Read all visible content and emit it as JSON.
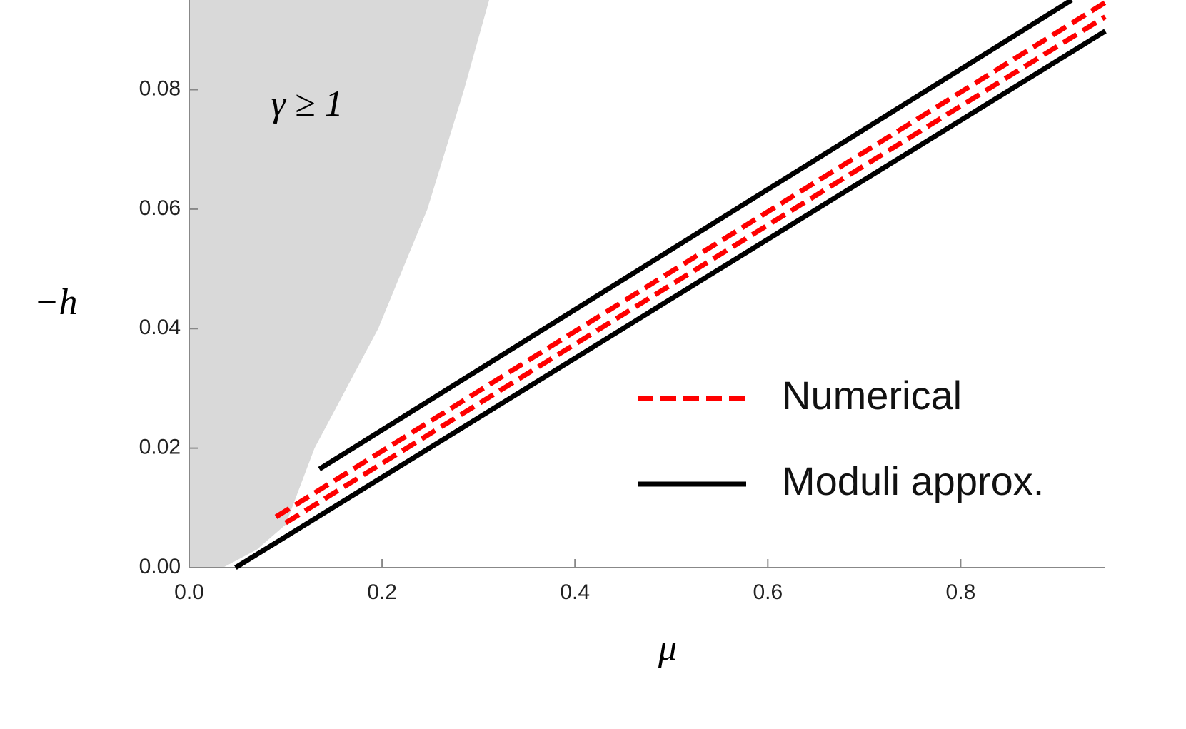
{
  "chart_data": {
    "type": "line",
    "xlabel": "μ",
    "ylabel": "−h",
    "annotation": "γ ≥ 1",
    "xlim": [
      0,
      0.95
    ],
    "ylim": [
      0,
      0.095
    ],
    "xticks": [
      {
        "value": 0,
        "label": "0.0"
      },
      0.2,
      0.4,
      0.6,
      0.8
    ],
    "yticks": [
      {
        "value": 0,
        "label": "0.00"
      },
      {
        "value": 0.02,
        "label": "0.02"
      },
      {
        "value": 0.04,
        "label": "0.04"
      },
      {
        "value": 0.06,
        "label": "0.06"
      },
      {
        "value": 0.08,
        "label": "0.08"
      }
    ],
    "legend": "lower-right",
    "region": {
      "color": "#d9d9d9",
      "x": [
        0.035,
        0.07,
        0.1,
        0.13,
        0.196,
        0.247,
        0.285,
        0.311
      ],
      "values": [
        0,
        0.003,
        0.0072,
        0.02,
        0.04,
        0.06,
        0.08,
        0.095
      ]
    },
    "series": [
      {
        "name": "Numerical",
        "color": "#ff0000",
        "dashed": true,
        "x": [
          0.09,
          0.95
        ],
        "values": [
          0.0085,
          0.0946
        ]
      },
      {
        "color": "#ff0000",
        "dashed": true,
        "x": [
          0.1,
          0.95
        ],
        "values": [
          0.0075,
          0.0922
        ]
      },
      {
        "name": "Moduli approx.",
        "color": "#000000",
        "dashed": false,
        "x": [
          0.135,
          0.915
        ],
        "values": [
          0.0165,
          0.095
        ]
      },
      {
        "color": "#000000",
        "dashed": false,
        "x": [
          0.048,
          0.95
        ],
        "values": [
          0,
          0.0898
        ]
      }
    ]
  }
}
